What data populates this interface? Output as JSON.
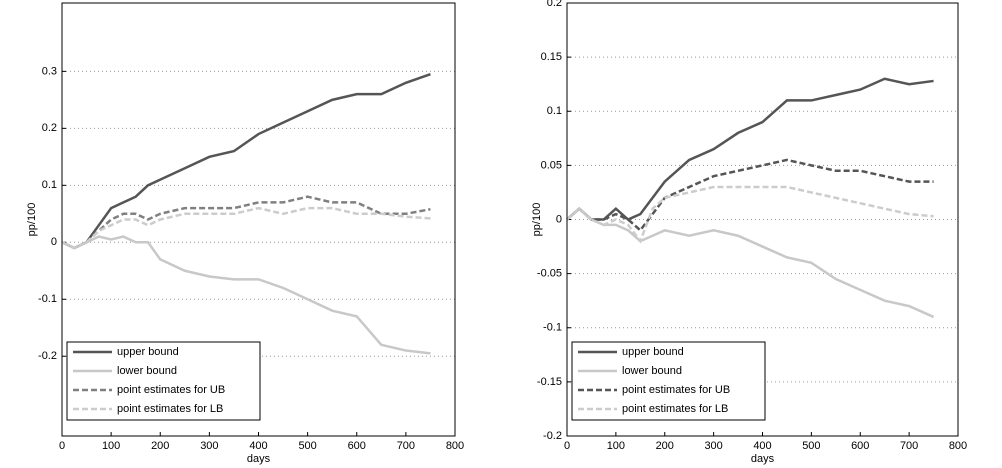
{
  "chart_data": [
    {
      "type": "line",
      "xlabel": "days",
      "ylabel": "pp/100",
      "xlim": [
        0,
        800
      ],
      "xticks": [
        0,
        100,
        200,
        300,
        400,
        500,
        600,
        700,
        800
      ],
      "ylim": [
        -0.34,
        0.42
      ],
      "yticks": [
        -0.2,
        -0.1,
        0,
        0.1,
        0.2,
        0.3
      ],
      "grid": "y",
      "legend": "lower left",
      "x": [
        0,
        25,
        50,
        75,
        100,
        125,
        150,
        175,
        200,
        250,
        300,
        350,
        400,
        450,
        500,
        550,
        600,
        650,
        700,
        750
      ],
      "series": [
        {
          "name": "upper bound",
          "color": "#555555",
          "dashed": false,
          "values": [
            0,
            -0.01,
            0,
            0.03,
            0.06,
            0.07,
            0.08,
            0.1,
            0.11,
            0.13,
            0.15,
            0.16,
            0.19,
            0.21,
            0.23,
            0.25,
            0.26,
            0.26,
            0.28,
            0.295
          ]
        },
        {
          "name": "lower bound",
          "color": "#c8c8c8",
          "dashed": false,
          "values": [
            0,
            -0.01,
            0,
            0.01,
            0.005,
            0.01,
            0,
            0,
            -0.03,
            -0.05,
            -0.06,
            -0.065,
            -0.065,
            -0.08,
            -0.1,
            -0.12,
            -0.13,
            -0.18,
            -0.19,
            -0.195
          ]
        },
        {
          "name": "point estimates for UB",
          "color": "#808080",
          "dashed": true,
          "values": [
            0,
            -0.01,
            0,
            0.02,
            0.04,
            0.05,
            0.05,
            0.04,
            0.05,
            0.06,
            0.06,
            0.06,
            0.07,
            0.07,
            0.08,
            0.07,
            0.07,
            0.05,
            0.05,
            0.058
          ]
        },
        {
          "name": "point estimates for LB",
          "color": "#cccccc",
          "dashed": true,
          "values": [
            0,
            -0.01,
            0,
            0.02,
            0.03,
            0.04,
            0.04,
            0.03,
            0.04,
            0.05,
            0.05,
            0.05,
            0.06,
            0.05,
            0.06,
            0.06,
            0.05,
            0.05,
            0.045,
            0.042
          ]
        }
      ]
    },
    {
      "type": "line",
      "xlabel": "days",
      "ylabel": "pp/100",
      "xlim": [
        0,
        800
      ],
      "xticks": [
        0,
        100,
        200,
        300,
        400,
        500,
        600,
        700,
        800
      ],
      "ylim": [
        -0.2,
        0.2
      ],
      "yticks": [
        -0.2,
        -0.15,
        -0.1,
        -0.05,
        0,
        0.05,
        0.1,
        0.15,
        0.2
      ],
      "grid": "y",
      "legend": "lower left",
      "x": [
        0,
        25,
        50,
        75,
        100,
        125,
        150,
        175,
        200,
        250,
        300,
        350,
        400,
        450,
        500,
        550,
        600,
        650,
        700,
        750
      ],
      "series": [
        {
          "name": "upper bound",
          "color": "#555555",
          "dashed": false,
          "values": [
            0,
            0.01,
            0,
            0,
            0.01,
            0,
            0.005,
            0.02,
            0.035,
            0.055,
            0.065,
            0.08,
            0.09,
            0.11,
            0.11,
            0.115,
            0.12,
            0.13,
            0.125,
            0.128
          ]
        },
        {
          "name": "lower bound",
          "color": "#c8c8c8",
          "dashed": false,
          "values": [
            0,
            0.01,
            0,
            -0.005,
            -0.005,
            -0.01,
            -0.02,
            -0.015,
            -0.01,
            -0.015,
            -0.01,
            -0.015,
            -0.025,
            -0.035,
            -0.04,
            -0.055,
            -0.065,
            -0.075,
            -0.08,
            -0.09
          ]
        },
        {
          "name": "point estimates for UB",
          "color": "#555555",
          "dashed": true,
          "values": [
            0,
            0.01,
            0,
            0,
            0.005,
            0,
            -0.01,
            0.005,
            0.02,
            0.03,
            0.04,
            0.045,
            0.05,
            0.055,
            0.05,
            0.045,
            0.045,
            0.04,
            0.035,
            0.035
          ]
        },
        {
          "name": "point estimates for LB",
          "color": "#cccccc",
          "dashed": true,
          "values": [
            0,
            0.01,
            0,
            -0.005,
            0,
            -0.005,
            -0.02,
            0.01,
            0.02,
            0.025,
            0.03,
            0.03,
            0.03,
            0.03,
            0.025,
            0.02,
            0.015,
            0.01,
            0.005,
            0.003
          ]
        }
      ]
    }
  ]
}
